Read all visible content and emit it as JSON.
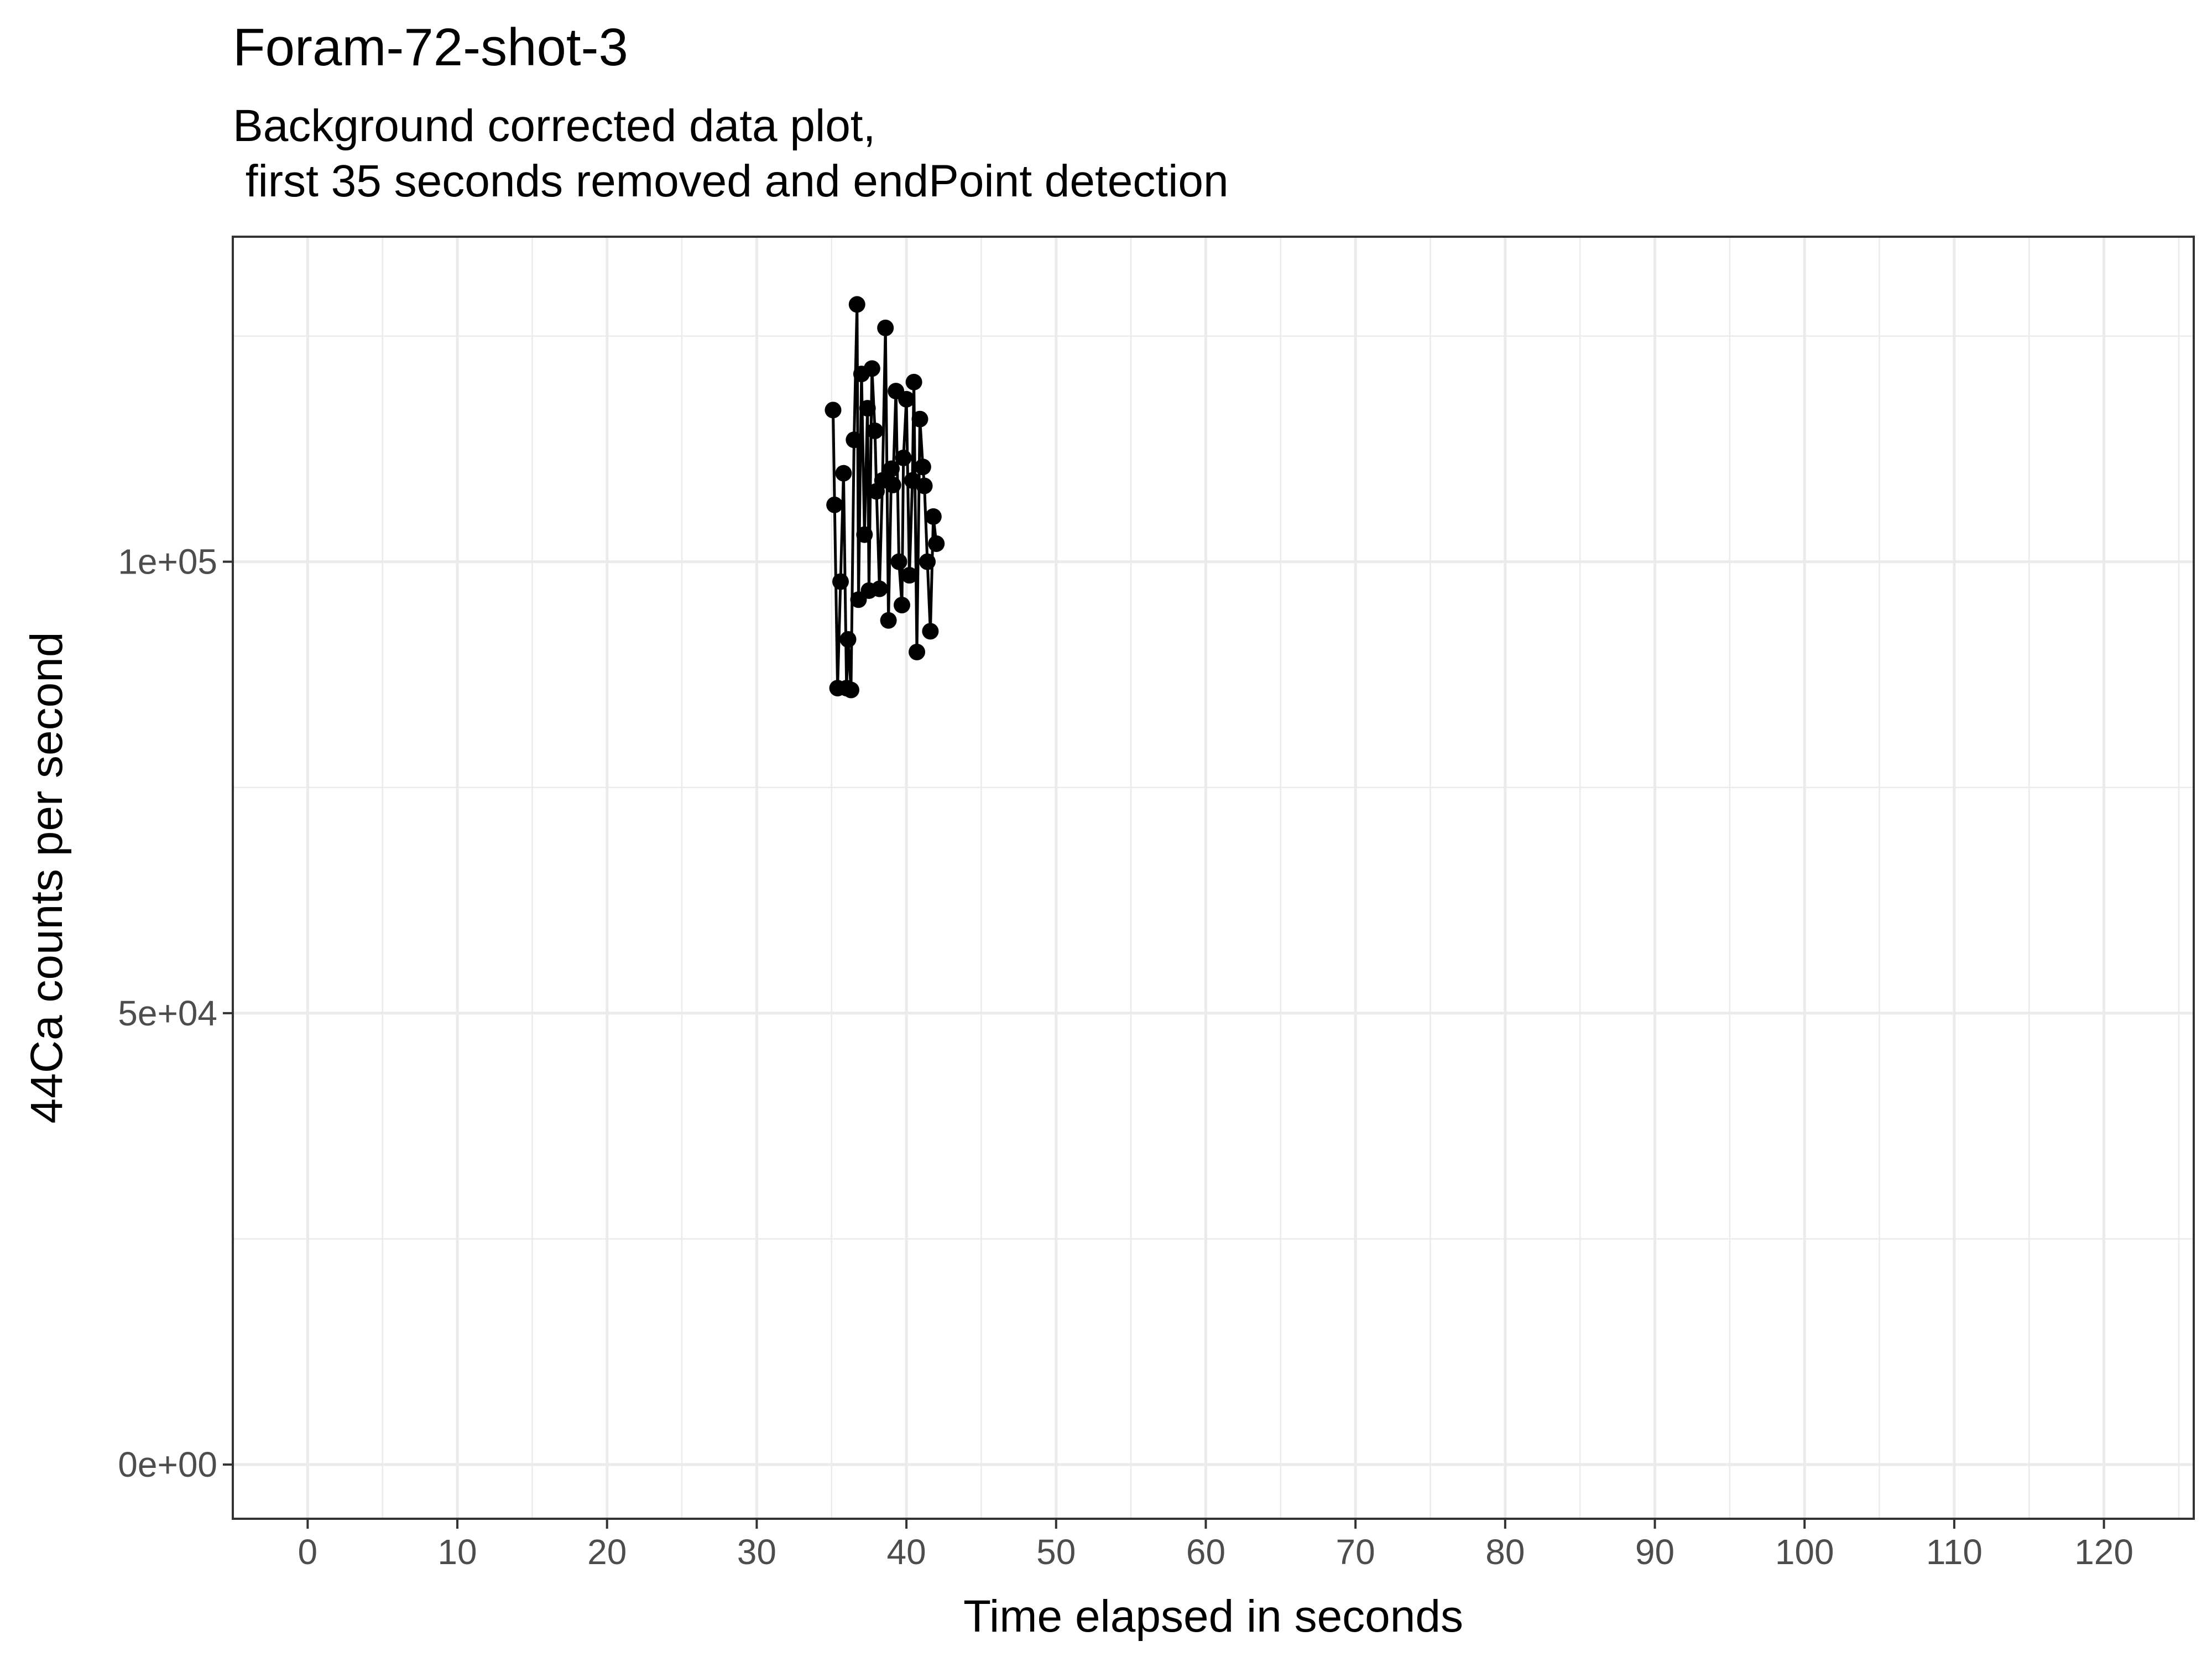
{
  "chart_data": {
    "type": "line",
    "title": "Foram-72-shot-3",
    "subtitle_lines": [
      "Background corrected data plot,",
      " first 35 seconds removed and endPoint detection"
    ],
    "xlabel": "Time elapsed in seconds",
    "ylabel": "44Ca counts per second",
    "xlim": [
      -5,
      126
    ],
    "ylim": [
      -6000,
      136000
    ],
    "x_ticks": [
      0,
      10,
      20,
      30,
      40,
      50,
      60,
      70,
      80,
      90,
      100,
      110,
      120
    ],
    "x_tick_labels": [
      "0",
      "10",
      "20",
      "30",
      "40",
      "50",
      "60",
      "70",
      "80",
      "90",
      "100",
      "110",
      "120"
    ],
    "y_ticks": [
      0,
      50000,
      100000
    ],
    "y_tick_labels": [
      "0e+00",
      "5e+04",
      "1e+05"
    ],
    "grid": true,
    "legend": "none",
    "markers": true,
    "series": [
      {
        "color": "#000000",
        "x": [
          35.1,
          35.2,
          35.4,
          35.6,
          35.8,
          36.0,
          36.1,
          36.3,
          36.5,
          36.7,
          36.8,
          37.0,
          37.2,
          37.4,
          37.5,
          37.7,
          37.9,
          38.0,
          38.2,
          38.4,
          38.6,
          38.8,
          39.0,
          39.1,
          39.3,
          39.5,
          39.7,
          39.8,
          40.0,
          40.2,
          40.4,
          40.5,
          40.7,
          40.9,
          41.1,
          41.2,
          41.4,
          41.6,
          41.8,
          42.0
        ],
        "y": [
          116800,
          106300,
          86000,
          97800,
          109800,
          86000,
          91400,
          85800,
          113500,
          128500,
          95800,
          120800,
          103000,
          117000,
          96800,
          121400,
          114500,
          107800,
          97000,
          109000,
          125900,
          93500,
          110300,
          108500,
          118900,
          100000,
          95200,
          111500,
          118000,
          98500,
          109000,
          119900,
          90000,
          115800,
          110500,
          108400,
          100000,
          92300,
          105000,
          102000
        ]
      }
    ]
  }
}
